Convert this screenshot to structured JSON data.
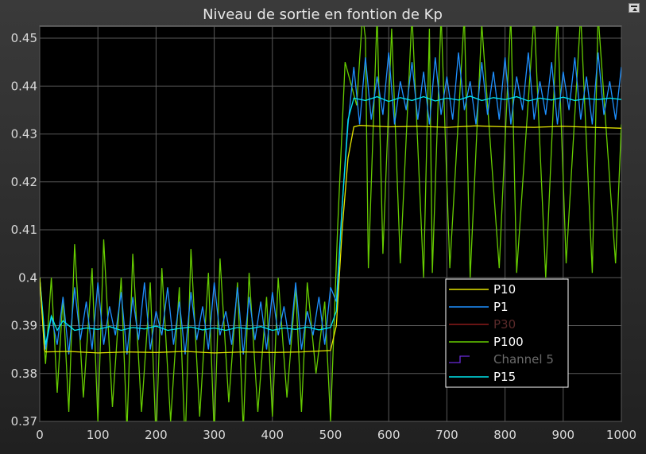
{
  "colors": {
    "background": "#000000",
    "grid": "#5a5a5a",
    "axes_text": "#d9d9d9",
    "legend_border": "#ffffff"
  },
  "chart_data": {
    "type": "line",
    "title": "Niveau de sortie en fontion de Kp",
    "xlabel": "",
    "ylabel": "",
    "xlim": [
      0,
      1000
    ],
    "ylim": [
      0.37,
      0.4525
    ],
    "xticks": [
      0,
      100,
      200,
      300,
      400,
      500,
      600,
      700,
      800,
      900,
      1000
    ],
    "yticks": [
      0.37,
      0.38,
      0.39,
      0.4,
      0.41,
      0.42,
      0.43,
      0.44,
      0.45
    ],
    "xtick_labels": [
      "0",
      "100",
      "200",
      "300",
      "400",
      "500",
      "600",
      "700",
      "800",
      "900",
      "1000"
    ],
    "ytick_labels": [
      "0.37",
      "0.38",
      "0.39",
      "0.4",
      "0.41",
      "0.42",
      "0.43",
      "0.44",
      "0.45"
    ],
    "grid": true,
    "legend_position": "bottom-right",
    "series": [
      {
        "name": "P10",
        "color": "#e6e600",
        "x": [
          0,
          8,
          10,
          50,
          100,
          150,
          200,
          250,
          300,
          350,
          400,
          450,
          500,
          510,
          520,
          530,
          540,
          550,
          600,
          650,
          700,
          750,
          800,
          850,
          900,
          950,
          1000
        ],
        "y": [
          0.4,
          0.385,
          0.3845,
          0.3846,
          0.3843,
          0.3845,
          0.3844,
          0.3846,
          0.3843,
          0.3845,
          0.3844,
          0.3845,
          0.3848,
          0.39,
          0.41,
          0.425,
          0.4315,
          0.4318,
          0.4315,
          0.4316,
          0.4314,
          0.4317,
          0.4315,
          0.4314,
          0.4316,
          0.4314,
          0.4312
        ]
      },
      {
        "name": "P1",
        "color": "#1e90ff",
        "x": [
          0,
          10,
          20,
          30,
          40,
          50,
          60,
          70,
          80,
          90,
          100,
          110,
          120,
          130,
          140,
          150,
          160,
          170,
          180,
          190,
          200,
          210,
          220,
          230,
          240,
          250,
          260,
          270,
          280,
          290,
          300,
          310,
          320,
          330,
          340,
          350,
          360,
          370,
          380,
          390,
          400,
          410,
          420,
          430,
          440,
          450,
          460,
          470,
          480,
          490,
          500,
          510,
          520,
          530,
          540,
          550,
          560,
          570,
          580,
          590,
          600,
          610,
          620,
          630,
          640,
          650,
          660,
          670,
          680,
          690,
          700,
          710,
          720,
          730,
          740,
          750,
          760,
          770,
          780,
          790,
          800,
          810,
          820,
          830,
          840,
          850,
          860,
          870,
          880,
          890,
          900,
          910,
          920,
          930,
          940,
          950,
          960,
          970,
          980,
          990,
          1000
        ],
        "y": [
          0.4,
          0.385,
          0.392,
          0.386,
          0.396,
          0.384,
          0.398,
          0.387,
          0.395,
          0.385,
          0.399,
          0.386,
          0.394,
          0.388,
          0.397,
          0.384,
          0.396,
          0.387,
          0.399,
          0.385,
          0.393,
          0.388,
          0.398,
          0.386,
          0.395,
          0.384,
          0.397,
          0.387,
          0.394,
          0.385,
          0.399,
          0.388,
          0.393,
          0.386,
          0.398,
          0.384,
          0.396,
          0.387,
          0.395,
          0.385,
          0.397,
          0.388,
          0.394,
          0.386,
          0.399,
          0.385,
          0.393,
          0.388,
          0.396,
          0.386,
          0.398,
          0.395,
          0.415,
          0.432,
          0.444,
          0.432,
          0.446,
          0.433,
          0.442,
          0.434,
          0.447,
          0.432,
          0.441,
          0.435,
          0.445,
          0.433,
          0.443,
          0.432,
          0.446,
          0.434,
          0.442,
          0.433,
          0.447,
          0.435,
          0.441,
          0.432,
          0.445,
          0.434,
          0.443,
          0.433,
          0.446,
          0.432,
          0.442,
          0.435,
          0.447,
          0.433,
          0.441,
          0.434,
          0.445,
          0.432,
          0.443,
          0.435,
          0.446,
          0.433,
          0.442,
          0.432,
          0.447,
          0.434,
          0.441,
          0.433,
          0.444
        ]
      },
      {
        "name": "P30",
        "color": "#8b1a1a",
        "x": [],
        "y": []
      },
      {
        "name": "P100",
        "color": "#66cc00",
        "x": [
          0,
          10,
          20,
          30,
          40,
          50,
          60,
          75,
          90,
          100,
          110,
          125,
          140,
          150,
          160,
          175,
          190,
          200,
          210,
          225,
          240,
          250,
          260,
          275,
          290,
          300,
          310,
          325,
          340,
          350,
          360,
          375,
          390,
          400,
          410,
          425,
          440,
          450,
          460,
          475,
          490,
          500,
          512,
          525,
          545,
          555,
          560,
          565,
          580,
          590,
          605,
          620,
          640,
          660,
          670,
          675,
          690,
          705,
          730,
          740,
          760,
          790,
          810,
          820,
          850,
          870,
          890,
          905,
          930,
          950,
          960,
          990,
          1000
        ],
        "y": [
          0.4,
          0.382,
          0.4,
          0.376,
          0.396,
          0.372,
          0.407,
          0.375,
          0.402,
          0.37,
          0.408,
          0.373,
          0.4,
          0.368,
          0.405,
          0.372,
          0.399,
          0.366,
          0.402,
          0.37,
          0.398,
          0.365,
          0.406,
          0.371,
          0.401,
          0.367,
          0.404,
          0.374,
          0.399,
          0.368,
          0.401,
          0.372,
          0.396,
          0.371,
          0.4,
          0.375,
          0.398,
          0.372,
          0.399,
          0.38,
          0.395,
          0.37,
          0.41,
          0.445,
          0.436,
          0.455,
          0.45,
          0.402,
          0.455,
          0.405,
          0.452,
          0.403,
          0.455,
          0.4,
          0.452,
          0.401,
          0.455,
          0.402,
          0.455,
          0.4,
          0.453,
          0.402,
          0.455,
          0.401,
          0.455,
          0.4,
          0.455,
          0.403,
          0.455,
          0.401,
          0.455,
          0.403,
          0.432
        ]
      },
      {
        "name": "Channel 5",
        "color": "#6a2bd9",
        "x": [],
        "y": []
      },
      {
        "name": "P15",
        "color": "#00e5ee",
        "x": [
          0,
          10,
          20,
          30,
          40,
          60,
          80,
          100,
          120,
          140,
          160,
          180,
          200,
          220,
          240,
          260,
          280,
          300,
          320,
          340,
          360,
          380,
          400,
          420,
          440,
          460,
          480,
          500,
          510,
          520,
          530,
          540,
          560,
          580,
          600,
          620,
          640,
          660,
          680,
          700,
          720,
          740,
          760,
          780,
          800,
          820,
          840,
          860,
          880,
          900,
          920,
          940,
          960,
          980,
          1000
        ],
        "y": [
          0.4,
          0.386,
          0.392,
          0.389,
          0.391,
          0.389,
          0.3895,
          0.3892,
          0.3898,
          0.389,
          0.3896,
          0.3893,
          0.3899,
          0.389,
          0.3894,
          0.3897,
          0.3891,
          0.3895,
          0.389,
          0.3896,
          0.3893,
          0.3898,
          0.389,
          0.3895,
          0.3892,
          0.3897,
          0.3891,
          0.3896,
          0.393,
          0.415,
          0.433,
          0.4375,
          0.437,
          0.4378,
          0.4368,
          0.4376,
          0.437,
          0.4378,
          0.4369,
          0.4375,
          0.4371,
          0.4379,
          0.437,
          0.4376,
          0.4372,
          0.4378,
          0.4369,
          0.4375,
          0.4371,
          0.4377,
          0.437,
          0.4374,
          0.4372,
          0.4375,
          0.4372
        ]
      }
    ]
  }
}
